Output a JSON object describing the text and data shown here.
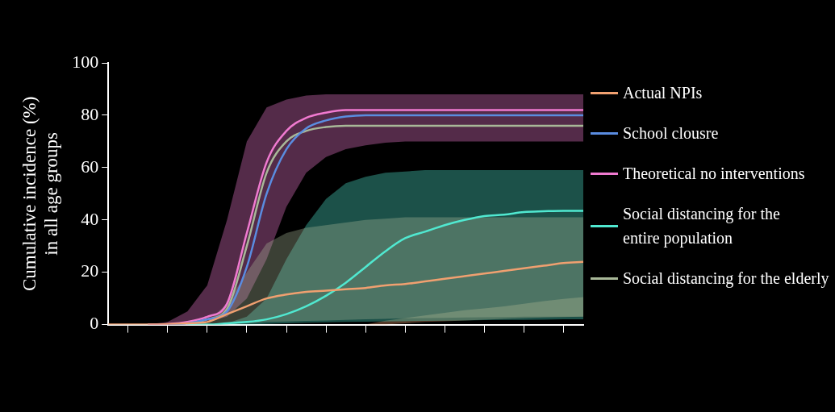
{
  "chart_data": {
    "type": "line",
    "ylabel": "Cumulative incidence (%)\nin all age groups",
    "categories": [
      null,
      null,
      null,
      null,
      null,
      null,
      null,
      null,
      null,
      null,
      null,
      null,
      null,
      null,
      null,
      null,
      null,
      null,
      null,
      null,
      null,
      null,
      null,
      null,
      null
    ],
    "ylim": [
      0,
      100
    ],
    "yticks": [
      0,
      20,
      40,
      60,
      80,
      100
    ],
    "tick_labels": "y",
    "grid": false,
    "legend": "right",
    "marker": "none",
    "line_style": "solid",
    "series": [
      {
        "name": "Actual NPIs",
        "color": "#f0a070",
        "values": [
          0,
          0,
          0,
          0.2,
          0.5,
          1,
          4,
          7,
          10,
          11.5,
          12.5,
          13,
          13.5,
          14,
          15,
          15.5,
          16.5,
          17.5,
          18.5,
          19.5,
          20.5,
          21.5,
          22.5,
          23.5,
          24
        ],
        "lower": [
          0,
          0,
          0,
          0,
          0,
          0,
          0,
          0,
          0,
          0,
          0,
          0,
          0,
          0,
          0,
          0.5,
          1,
          1.3,
          1.6,
          1.9,
          2.2,
          2.5,
          2.7,
          2.9,
          3
        ],
        "upper": [
          0,
          0,
          0,
          0,
          0,
          0,
          0,
          0,
          0,
          0,
          0,
          0,
          0,
          0,
          1.5,
          2.5,
          3.5,
          4.5,
          5.5,
          6.2,
          7,
          8,
          9,
          9.8,
          10.5
        ]
      },
      {
        "name": "School clousre",
        "color": "#5a8ce0",
        "values": [
          null,
          null,
          null,
          0,
          0.5,
          2,
          5,
          22,
          50,
          67,
          75,
          78,
          79.5,
          80,
          80,
          80,
          80,
          80,
          80,
          80,
          80,
          80,
          80,
          80,
          80
        ]
      },
      {
        "name": "Theoretical no interventions",
        "color": "#f07ad0",
        "values": [
          null,
          null,
          0,
          0.2,
          1,
          3,
          8,
          35,
          62,
          74,
          79,
          81,
          82,
          82,
          82,
          82,
          82,
          82,
          82,
          82,
          82,
          82,
          82,
          82,
          82
        ],
        "lower": [
          0,
          0,
          0,
          0,
          0,
          1,
          3,
          10,
          25,
          45,
          58,
          64,
          67,
          68.5,
          69.5,
          70,
          70,
          70,
          70,
          70,
          70,
          70,
          70,
          70,
          70
        ],
        "upper": [
          0,
          0,
          0,
          1,
          5,
          15,
          40,
          70,
          83,
          86,
          87.5,
          88,
          88,
          88,
          88,
          88,
          88,
          88,
          88,
          88,
          88,
          88,
          88,
          88,
          88
        ]
      },
      {
        "name": "Social distancing for the\nentire population",
        "color": "#50e8d0",
        "values": [
          null,
          null,
          null,
          null,
          0,
          0,
          0.5,
          1,
          2,
          4,
          7,
          11,
          16,
          22,
          28,
          33,
          35.5,
          38,
          40,
          41.5,
          42,
          43,
          43.3,
          43.5,
          43.5
        ],
        "lower": [
          0,
          0,
          0,
          0,
          0,
          0,
          0,
          0,
          0.3,
          0.5,
          0.7,
          0.9,
          1,
          1.1,
          1.2,
          1.3,
          1.4,
          1.5,
          1.6,
          1.7,
          1.8,
          1.8,
          1.9,
          2,
          2
        ],
        "upper": [
          0,
          0,
          0,
          0,
          0,
          0,
          0.5,
          3,
          10,
          25,
          38,
          48,
          54,
          56.5,
          58,
          58.5,
          59,
          59,
          59,
          59,
          59,
          59,
          59,
          59,
          59
        ]
      },
      {
        "name": "Social distancing for the elderly",
        "color": "#a8b898",
        "values": [
          null,
          null,
          0,
          0,
          0.5,
          2,
          6,
          30,
          58,
          70,
          74,
          75.5,
          76,
          76,
          76,
          76,
          76,
          76,
          76,
          76,
          76,
          76,
          76,
          76,
          76
        ],
        "lower": [
          0,
          0,
          0,
          0,
          0,
          0,
          0,
          0.5,
          1,
          1.2,
          1.4,
          1.6,
          1.8,
          2,
          2.2,
          2.4,
          2.5,
          2.6,
          2.7,
          2.8,
          2.9,
          3,
          3,
          3,
          3
        ],
        "upper": [
          0,
          0,
          0,
          0,
          0,
          1,
          8,
          20,
          31,
          35,
          37,
          38,
          39,
          40,
          40.5,
          41,
          41,
          41,
          41,
          41,
          41,
          41,
          41,
          41,
          41
        ]
      }
    ]
  }
}
